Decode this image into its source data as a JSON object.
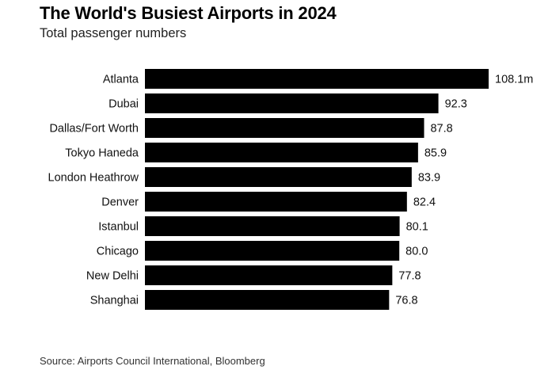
{
  "header": {
    "title": "The World's Busiest Airports in 2024",
    "subtitle": "Total passenger numbers"
  },
  "footer": {
    "source": "Source: Airports Council International, Bloomberg"
  },
  "chart_data": {
    "type": "bar",
    "orientation": "horizontal",
    "title": "The World's Busiest Airports in 2024",
    "subtitle": "Total passenger numbers",
    "xlabel": "",
    "ylabel": "",
    "unit": "million passengers",
    "categories": [
      "Atlanta",
      "Dubai",
      "Dallas/Fort Worth",
      "Tokyo Haneda",
      "London Heathrow",
      "Denver",
      "Istanbul",
      "Chicago",
      "New Delhi",
      "Shanghai"
    ],
    "values": [
      108.1,
      92.3,
      87.8,
      85.9,
      83.9,
      82.4,
      80.1,
      80.0,
      77.8,
      76.8
    ],
    "value_labels": [
      "108.1m",
      "92.3",
      "87.8",
      "85.9",
      "83.9",
      "82.4",
      "80.1",
      "80.0",
      "77.8",
      "76.8"
    ],
    "xlim": [
      0,
      108.1
    ],
    "grid": false,
    "legend": "none",
    "bar_color": "#000000"
  }
}
